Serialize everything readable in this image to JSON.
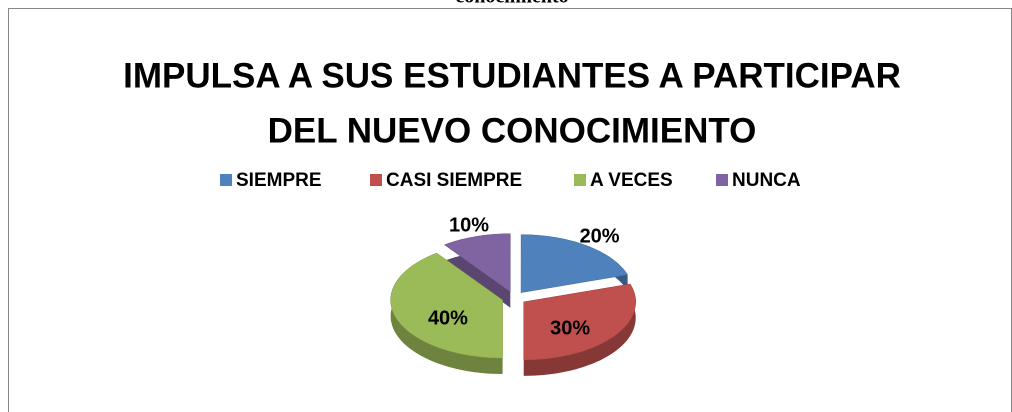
{
  "caption": "conocimiento",
  "chart_data": {
    "type": "pie",
    "title": [
      "IMPULSA A SUS ESTUDIANTES A PARTICIPAR",
      "DEL NUEVO CONOCIMIENTO"
    ],
    "categories": [
      "SIEMPRE",
      "CASI SIEMPRE",
      "A VECES",
      "NUNCA"
    ],
    "values": [
      20,
      30,
      40,
      10
    ],
    "value_labels": [
      "20%",
      "30%",
      "40%",
      "10%"
    ],
    "colors": [
      "#4f81bd",
      "#c0504d",
      "#9bbb59",
      "#8064a2"
    ],
    "legend": "top"
  }
}
